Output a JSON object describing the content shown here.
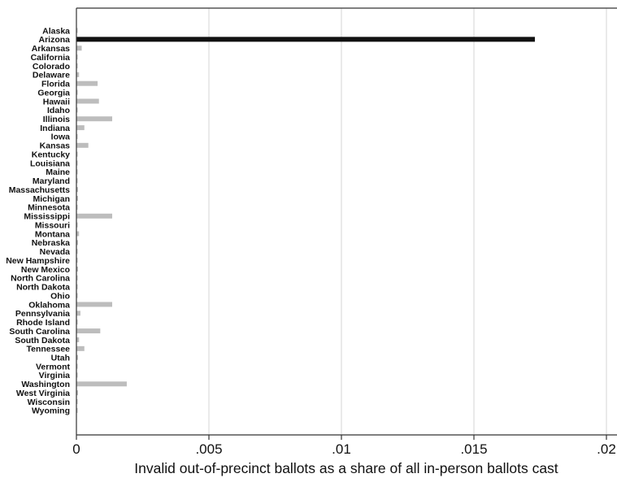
{
  "chart_data": {
    "type": "bar",
    "orientation": "horizontal",
    "title": "",
    "xlabel": "Invalid out-of-precinct ballots as a share of all in-person ballots cast",
    "ylabel": "",
    "xlim": [
      0,
      0.02
    ],
    "xticks": [
      0,
      0.005,
      0.01,
      0.015,
      0.02
    ],
    "xtick_labels": [
      "0",
      ".005",
      ".01",
      ".015",
      ".02"
    ],
    "grid": "vertical",
    "legend": "none",
    "highlight_category": "Arizona",
    "colors": {
      "highlight": "#111111",
      "other": "#bdbdbd",
      "grid": "#dcdcdc",
      "axis": "#333333"
    },
    "categories": [
      "Alaska",
      "Arizona",
      "Arkansas",
      "California",
      "Colorado",
      "Delaware",
      "Florida",
      "Georgia",
      "Hawaii",
      "Idaho",
      "Illinois",
      "Indiana",
      "Iowa",
      "Kansas",
      "Kentucky",
      "Louisiana",
      "Maine",
      "Maryland",
      "Massachusetts",
      "Michigan",
      "Minnesota",
      "Mississippi",
      "Missouri",
      "Montana",
      "Nebraska",
      "Nevada",
      "New Hampshire",
      "New Mexico",
      "North Carolina",
      "North Dakota",
      "Ohio",
      "Oklahoma",
      "Pennsylvania",
      "Rhode Island",
      "South Carolina",
      "South Dakota",
      "Tennessee",
      "Utah",
      "Vermont",
      "Virginia",
      "Washington",
      "West Virginia",
      "Wisconsin",
      "Wyoming"
    ],
    "values": [
      0,
      0.0173,
      0.0002,
      0,
      0,
      0.0001,
      0.0008,
      0,
      0.00085,
      0,
      0.00135,
      0.0003,
      0,
      0.00045,
      0,
      0,
      0,
      0,
      5e-05,
      5e-05,
      0,
      0.00135,
      0,
      0.0001,
      5e-05,
      0,
      0,
      5e-05,
      0,
      0,
      0,
      0.00135,
      0.00015,
      0,
      0.0009,
      0.0001,
      0.0003,
      5e-05,
      0,
      0,
      0.0019,
      5e-05,
      0,
      0
    ]
  }
}
